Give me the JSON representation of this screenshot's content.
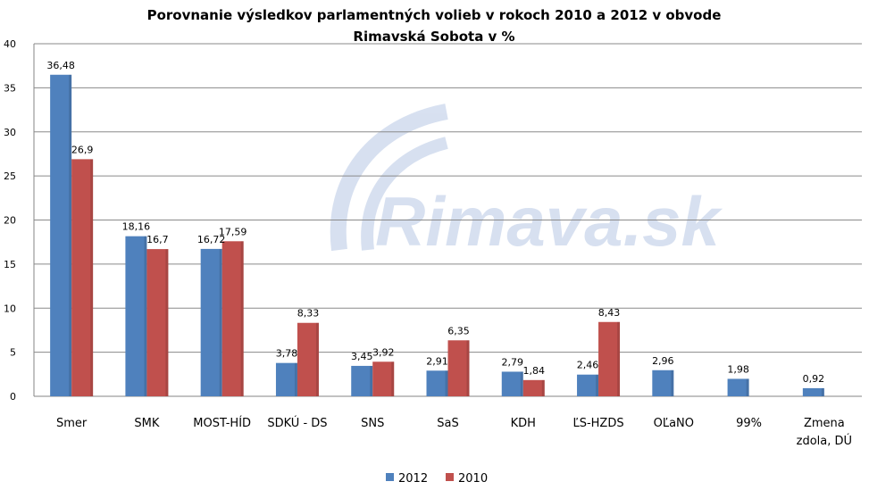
{
  "chart_data": {
    "type": "bar",
    "title": [
      "Porovnanie výsledkov parlamentných volieb v rokoch 2010 a 2012 v obvode",
      "Rimavská Sobota v %"
    ],
    "categories": [
      [
        "Smer"
      ],
      [
        "SMK"
      ],
      [
        "MOST-HÍD"
      ],
      [
        "SDKÚ - DS"
      ],
      [
        "SNS"
      ],
      [
        "SaS"
      ],
      [
        "KDH"
      ],
      [
        "ĽS-HZDS"
      ],
      [
        "OĽaNO"
      ],
      [
        "99%"
      ],
      [
        "Zmena",
        "zdola, DÚ"
      ]
    ],
    "series": [
      {
        "name": "2012",
        "color": "#4F81BD",
        "values": [
          36.48,
          18.16,
          16.72,
          3.78,
          3.45,
          2.91,
          2.79,
          2.46,
          2.96,
          1.98,
          0.92
        ],
        "labels": [
          "36,48",
          "18,16",
          "16,72",
          "3,78",
          "3,45",
          "2,91",
          "2,79",
          "2,46",
          "2,96",
          "1,98",
          "0,92"
        ]
      },
      {
        "name": "2010",
        "color": "#C0504D",
        "values": [
          26.9,
          16.7,
          17.59,
          8.33,
          3.92,
          6.35,
          1.84,
          8.43,
          null,
          null,
          null
        ],
        "labels": [
          "26,9",
          "16,7",
          "17,59",
          "8,33",
          "3,92",
          "6,35",
          "1,84",
          "8,43",
          null,
          null,
          null
        ]
      }
    ],
    "ylim": [
      0,
      40
    ],
    "yticks": [
      0,
      5,
      10,
      15,
      20,
      25,
      30,
      35,
      40
    ],
    "grid": true,
    "legend": "bottom",
    "xlabel": "",
    "ylabel": ""
  },
  "watermark": "Rimava.sk"
}
